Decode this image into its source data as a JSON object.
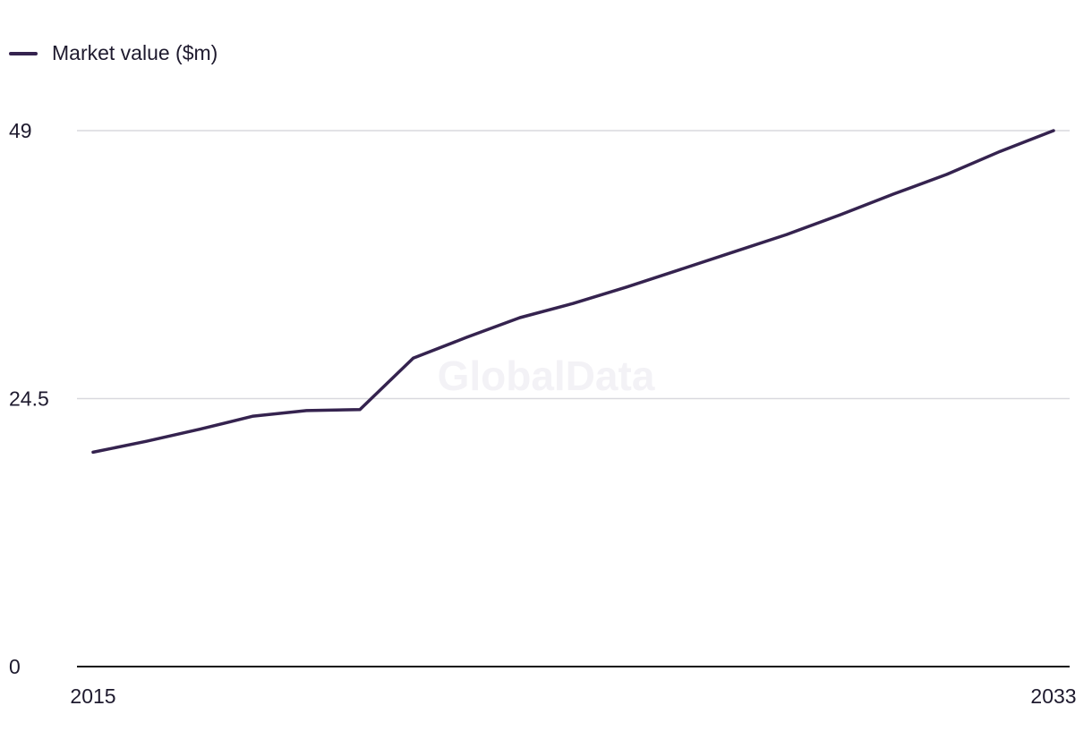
{
  "legend": {
    "label": "Market value ($m)"
  },
  "watermark": "GlobalData",
  "colors": {
    "series": "#35234f",
    "grid": "#d9d9de",
    "axis": "#111111",
    "watermark": "#f3f2f6"
  },
  "chart_data": {
    "type": "line",
    "title": "",
    "xlabel": "",
    "ylabel": "",
    "legend_position": "top-left",
    "grid": true,
    "x": [
      2015,
      2016,
      2017,
      2018,
      2019,
      2020,
      2021,
      2022,
      2023,
      2024,
      2025,
      2026,
      2027,
      2028,
      2029,
      2030,
      2031,
      2032,
      2033
    ],
    "series": [
      {
        "name": "Market value ($m)",
        "values": [
          19.6,
          20.6,
          21.7,
          22.9,
          23.4,
          23.5,
          28.2,
          30.1,
          31.9,
          33.2,
          34.7,
          36.3,
          37.9,
          39.5,
          41.3,
          43.2,
          45.0,
          47.1,
          49.0
        ]
      }
    ],
    "xlim": [
      2015,
      2033
    ],
    "ylim": [
      0,
      49
    ],
    "x_ticks": [
      "2015",
      "2033"
    ],
    "y_ticks": [
      "0",
      "24.5",
      "49"
    ]
  }
}
